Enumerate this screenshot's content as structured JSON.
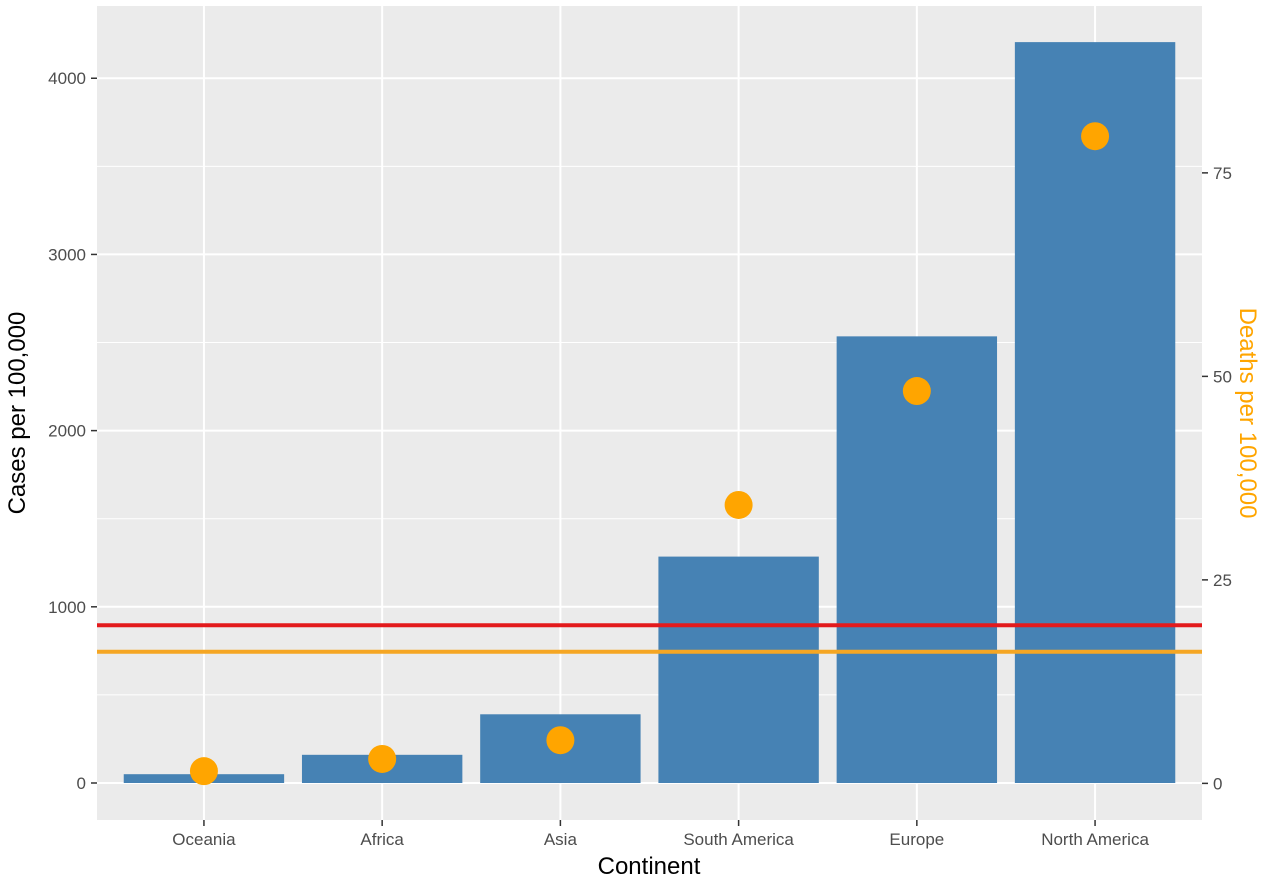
{
  "chart_data": {
    "type": "bar",
    "categories": [
      "Oceania",
      "Africa",
      "Asia",
      "South America",
      "Europe",
      "North America"
    ],
    "series": [
      {
        "axis": "left",
        "mark": "bar",
        "color": "#4682b4",
        "values": [
          50,
          160,
          390,
          1285,
          2535,
          4205
        ]
      },
      {
        "axis": "right",
        "mark": "point",
        "color": "#ffa500",
        "values": [
          1.5,
          3.0,
          5.3,
          34.2,
          48.2,
          79.5
        ]
      }
    ],
    "reference_lines": [
      {
        "axis": "left",
        "value": 895,
        "color": "#e31a1c"
      },
      {
        "axis": "left",
        "value": 745,
        "color": "#f5a623"
      }
    ],
    "xlabel": "Continent",
    "ylabel": "Cases per 100,000",
    "y2label": "Deaths per 100,000",
    "ylim": [
      -210,
      4410
    ],
    "y2lim": [
      -4.5,
      95.5
    ],
    "yticks": [
      0,
      1000,
      2000,
      3000,
      4000
    ],
    "y2ticks": [
      0,
      25,
      50,
      75
    ],
    "ytick_labels": [
      "0",
      "1000",
      "2000",
      "3000",
      "4000"
    ],
    "y2tick_labels": [
      "0",
      "25",
      "50",
      "75"
    ],
    "grid": true,
    "panel_color": "#ebebeb",
    "y2label_color": "#ffa500"
  }
}
